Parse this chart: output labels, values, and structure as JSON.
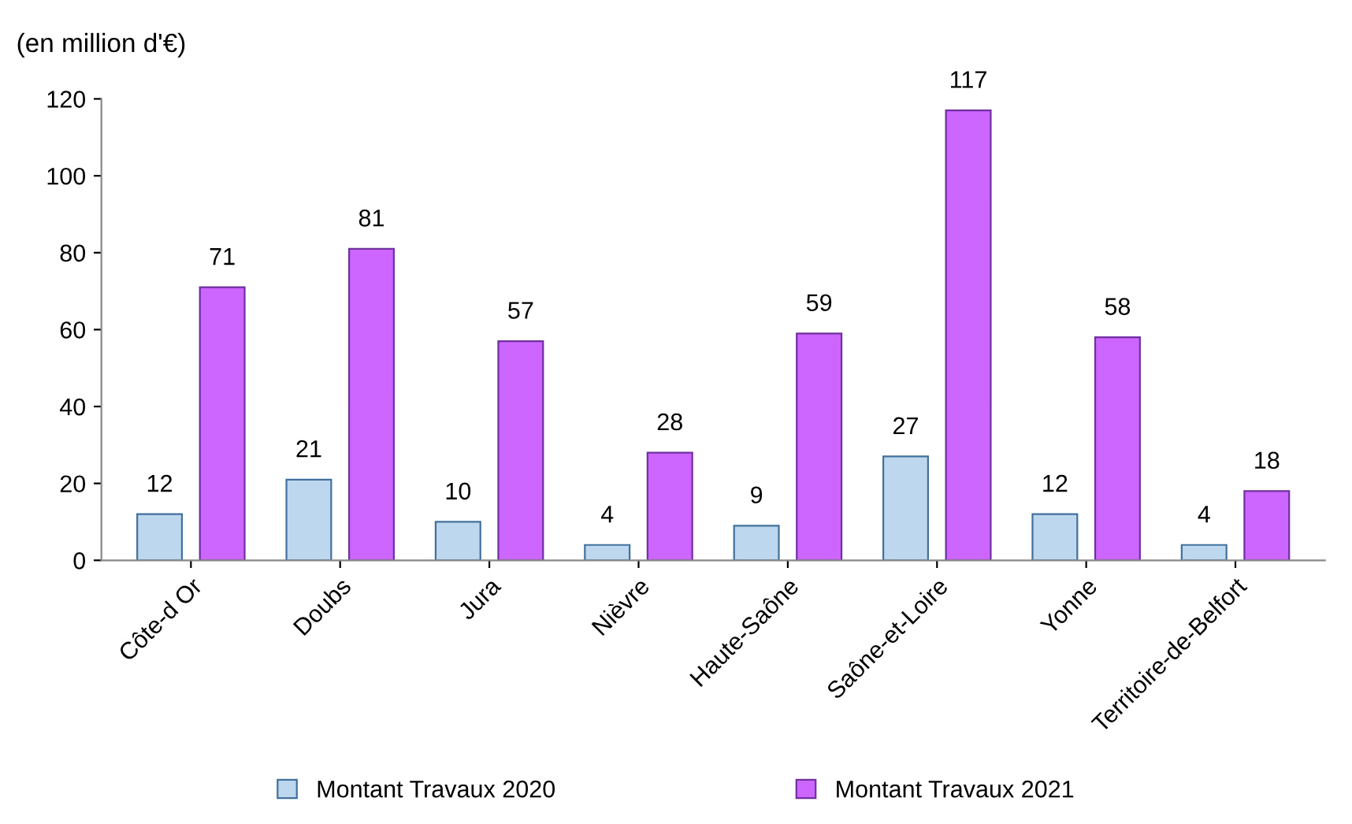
{
  "chart_data": {
    "type": "bar",
    "ylabel": "(en million d'€)",
    "categories": [
      "Côte-d Or",
      "Doubs",
      "Jura",
      "Nièvre",
      "Haute-Saône",
      "Saône-et-Loire",
      "Yonne",
      "Territoire-de-Belfort"
    ],
    "series": [
      {
        "name": "Montant Travaux 2020",
        "color": "#bdd7ee",
        "values": [
          12,
          21,
          10,
          4,
          9,
          27,
          12,
          4
        ]
      },
      {
        "name": "Montant Travaux 2021",
        "color": "#cc66ff",
        "values": [
          71,
          81,
          57,
          28,
          59,
          117,
          58,
          18
        ]
      }
    ],
    "ylim": [
      0,
      120
    ],
    "yticks": [
      0,
      20,
      40,
      60,
      80,
      100,
      120
    ],
    "data_labels": true,
    "legend": "bottom",
    "grid": false
  }
}
